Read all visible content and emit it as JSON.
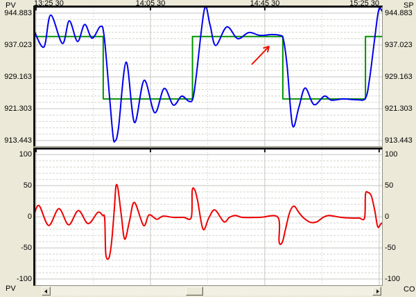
{
  "colors": {
    "background": "#ece9d8",
    "plot_background": "#ffffff",
    "grid_major": "#c4c4c0",
    "grid_minor": "#d2d2cc",
    "pv_line": "#0000ee",
    "sp_line": "#009400",
    "co_line": "#ee0000",
    "annotation_arrow": "#ee1100",
    "text": "#000000"
  },
  "header": {
    "left_label": "PV",
    "right_label": "SP"
  },
  "footer": {
    "left_label": "PV",
    "right_label": "CO"
  },
  "time_axis": {
    "tick_labels": [
      "13:25 30",
      "14:05 30",
      "14:45 30",
      "15:25 30"
    ],
    "tick_minutes": [
      0,
      40,
      80,
      120
    ],
    "minor_minutes": [
      20,
      60,
      100
    ],
    "range_minutes": [
      -0.25,
      121
    ]
  },
  "top_chart": {
    "y_tick_labels": [
      "944.883",
      "937.023",
      "929.163",
      "921.303",
      "913.443"
    ],
    "y_tick_values": [
      944.883,
      937.023,
      929.163,
      921.303,
      913.443
    ],
    "v_range": [
      912.07,
      946.25
    ],
    "y_minor_step": 1.572
  },
  "bottom_chart": {
    "y_tick_labels": [
      "100",
      "50",
      "0",
      "-50",
      "-100"
    ],
    "y_tick_values": [
      100,
      50,
      0,
      -50,
      -100
    ],
    "v_range": [
      -110,
      108
    ],
    "y_minor_step": 10
  },
  "chart_data": [
    {
      "id": "trend-top",
      "type": "line",
      "title": "Process variable and setpoint trend",
      "x_unit": "minutes since 13:25:30",
      "x_ticks": [
        "13:25 30",
        "14:05 30",
        "14:45 30",
        "15:25 30"
      ],
      "ylim": [
        912.07,
        946.25
      ],
      "legend": "none",
      "grid": "on",
      "series": [
        {
          "name": "SP",
          "color": "#009400",
          "width": 2,
          "smooth": false,
          "points": [
            [
              -1.0,
              939.1
            ],
            [
              23.5,
              939.1
            ],
            [
              23.5,
              923.7
            ],
            [
              54.7,
              923.7
            ],
            [
              54.7,
              939.1
            ],
            [
              86.3,
              939.1
            ],
            [
              86.3,
              923.7
            ],
            [
              115.2,
              923.7
            ],
            [
              115.2,
              939.1
            ],
            [
              121.0,
              939.1
            ]
          ]
        },
        {
          "name": "PV",
          "color": "#0000ee",
          "width": 2,
          "smooth": true,
          "points": [
            [
              -1.0,
              941.1
            ],
            [
              2.7,
              936.5
            ],
            [
              5.1,
              944.4
            ],
            [
              9.2,
              937.4
            ],
            [
              11.6,
              943.0
            ],
            [
              14.5,
              937.9
            ],
            [
              17.0,
              942.1
            ],
            [
              19.6,
              938.7
            ],
            [
              22.5,
              941.6
            ],
            [
              23.8,
              939.2
            ],
            [
              25.7,
              924.2
            ],
            [
              26.9,
              914.6
            ],
            [
              27.6,
              913.3
            ],
            [
              28.8,
              916.4
            ],
            [
              31.5,
              932.8
            ],
            [
              34.4,
              917.9
            ],
            [
              37.8,
              928.3
            ],
            [
              41.5,
              920.3
            ],
            [
              44.8,
              926.3
            ],
            [
              48.0,
              922.2
            ],
            [
              50.9,
              924.4
            ],
            [
              53.3,
              923.2
            ],
            [
              54.8,
              923.7
            ],
            [
              56.0,
              929.3
            ],
            [
              58.9,
              945.9
            ],
            [
              60.8,
              942.1
            ],
            [
              62.8,
              936.9
            ],
            [
              66.7,
              941.5
            ],
            [
              70.5,
              938.6
            ],
            [
              74.4,
              940.1
            ],
            [
              78.3,
              939.4
            ],
            [
              82.4,
              939.6
            ],
            [
              85.3,
              939.4
            ],
            [
              86.5,
              938.4
            ],
            [
              87.8,
              931.9
            ],
            [
              89.7,
              917.2
            ],
            [
              91.9,
              921.6
            ],
            [
              94.1,
              926.4
            ],
            [
              97.2,
              922.3
            ],
            [
              100.8,
              924.4
            ],
            [
              103.3,
              923.4
            ],
            [
              107.4,
              923.7
            ],
            [
              112.2,
              923.5
            ],
            [
              115.2,
              923.9
            ],
            [
              116.6,
              928.5
            ],
            [
              118.3,
              937.9
            ],
            [
              119.5,
              944.4
            ],
            [
              120.2,
              946.1
            ],
            [
              121.0,
              945.4
            ]
          ]
        }
      ],
      "annotation_arrow": {
        "from": [
          75.4,
          932.2
        ],
        "to": [
          81.5,
          936.7
        ]
      }
    },
    {
      "id": "trend-bottom",
      "type": "line",
      "title": "Controller output trend",
      "x_unit": "minutes since 13:25:30",
      "ylim": [
        -110,
        108
      ],
      "legend": "none",
      "grid": "on",
      "series": [
        {
          "name": "CO",
          "color": "#ee0000",
          "width": 2,
          "smooth": true,
          "points": [
            [
              -1.0,
              -1
            ],
            [
              1.0,
              18
            ],
            [
              4.4,
              -14
            ],
            [
              8.0,
              13
            ],
            [
              11.4,
              -13
            ],
            [
              14.8,
              10
            ],
            [
              18.2,
              -11
            ],
            [
              21.6,
              7
            ],
            [
              23.3,
              2
            ],
            [
              24.0,
              -3
            ],
            [
              24.4,
              -60
            ],
            [
              25.5,
              -66
            ],
            [
              26.4,
              -41
            ],
            [
              27.4,
              14
            ],
            [
              27.9,
              48
            ],
            [
              28.6,
              46
            ],
            [
              29.8,
              3
            ],
            [
              31.0,
              -36
            ],
            [
              32.7,
              -6
            ],
            [
              34.4,
              23
            ],
            [
              37.6,
              -14
            ],
            [
              39.5,
              3
            ],
            [
              42.2,
              -4
            ],
            [
              44.4,
              1
            ],
            [
              48.0,
              -1
            ],
            [
              51.6,
              -1
            ],
            [
              54.3,
              -1
            ],
            [
              54.6,
              42
            ],
            [
              55.5,
              43
            ],
            [
              56.5,
              26
            ],
            [
              58.4,
              -20
            ],
            [
              60.4,
              -2
            ],
            [
              62.5,
              11
            ],
            [
              65.7,
              -8
            ],
            [
              67.6,
              -1
            ],
            [
              69.8,
              2
            ],
            [
              72.2,
              -1
            ],
            [
              78.3,
              -1
            ],
            [
              84.6,
              -1
            ],
            [
              85.0,
              -40
            ],
            [
              86.1,
              -41
            ],
            [
              87.3,
              -19
            ],
            [
              88.7,
              7
            ],
            [
              90.2,
              17
            ],
            [
              91.9,
              7
            ],
            [
              93.6,
              -2
            ],
            [
              96.0,
              -9
            ],
            [
              98.2,
              -8
            ],
            [
              100.4,
              -1
            ],
            [
              102.3,
              2
            ],
            [
              104.2,
              1
            ],
            [
              106.7,
              -1
            ],
            [
              109.8,
              -2
            ],
            [
              112.9,
              -2
            ],
            [
              114.9,
              -2
            ],
            [
              115.2,
              36
            ],
            [
              116.1,
              39
            ],
            [
              117.3,
              33
            ],
            [
              118.5,
              9
            ],
            [
              119.5,
              -16
            ],
            [
              120.5,
              -12
            ],
            [
              121.0,
              -10
            ]
          ]
        }
      ]
    }
  ],
  "scrollbar": {
    "orientation": "horizontal"
  }
}
